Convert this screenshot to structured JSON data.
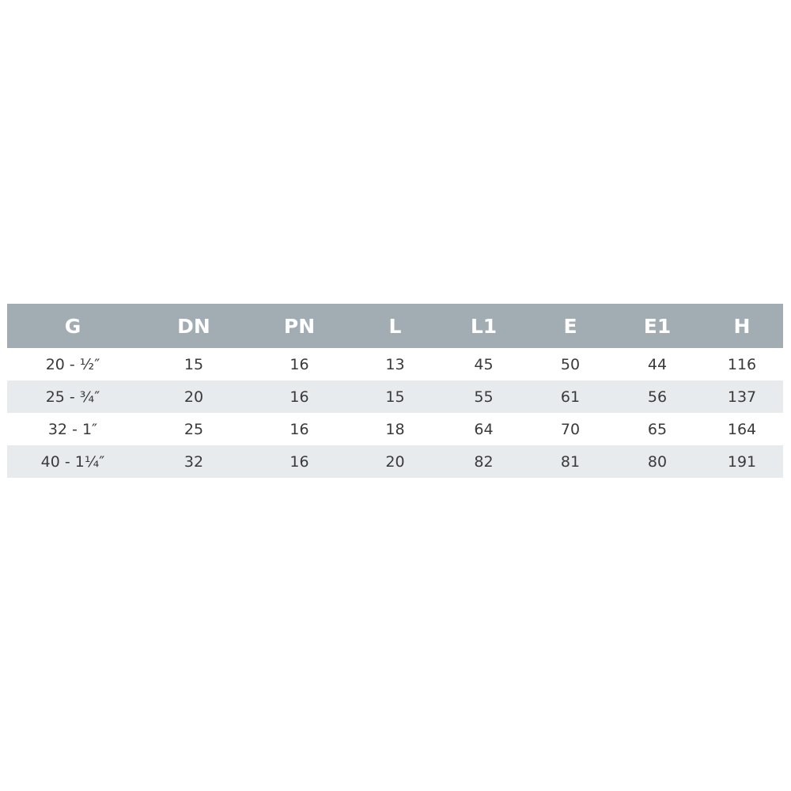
{
  "table": {
    "headers": [
      "G",
      "DN",
      "PN",
      "L",
      "L1",
      "E",
      "E1",
      "H"
    ],
    "rows": [
      [
        "20 - ½″",
        "15",
        "16",
        "13",
        "45",
        "50",
        "44",
        "116"
      ],
      [
        "25 - ¾″",
        "20",
        "16",
        "15",
        "55",
        "61",
        "56",
        "137"
      ],
      [
        "32 - 1″",
        "25",
        "16",
        "18",
        "64",
        "70",
        "65",
        "164"
      ],
      [
        "40 - 1¼″",
        "32",
        "16",
        "20",
        "82",
        "81",
        "80",
        "191"
      ]
    ]
  },
  "colors": {
    "header_bg": "#a2adb3",
    "stripe_bg": "#e8ebee"
  }
}
